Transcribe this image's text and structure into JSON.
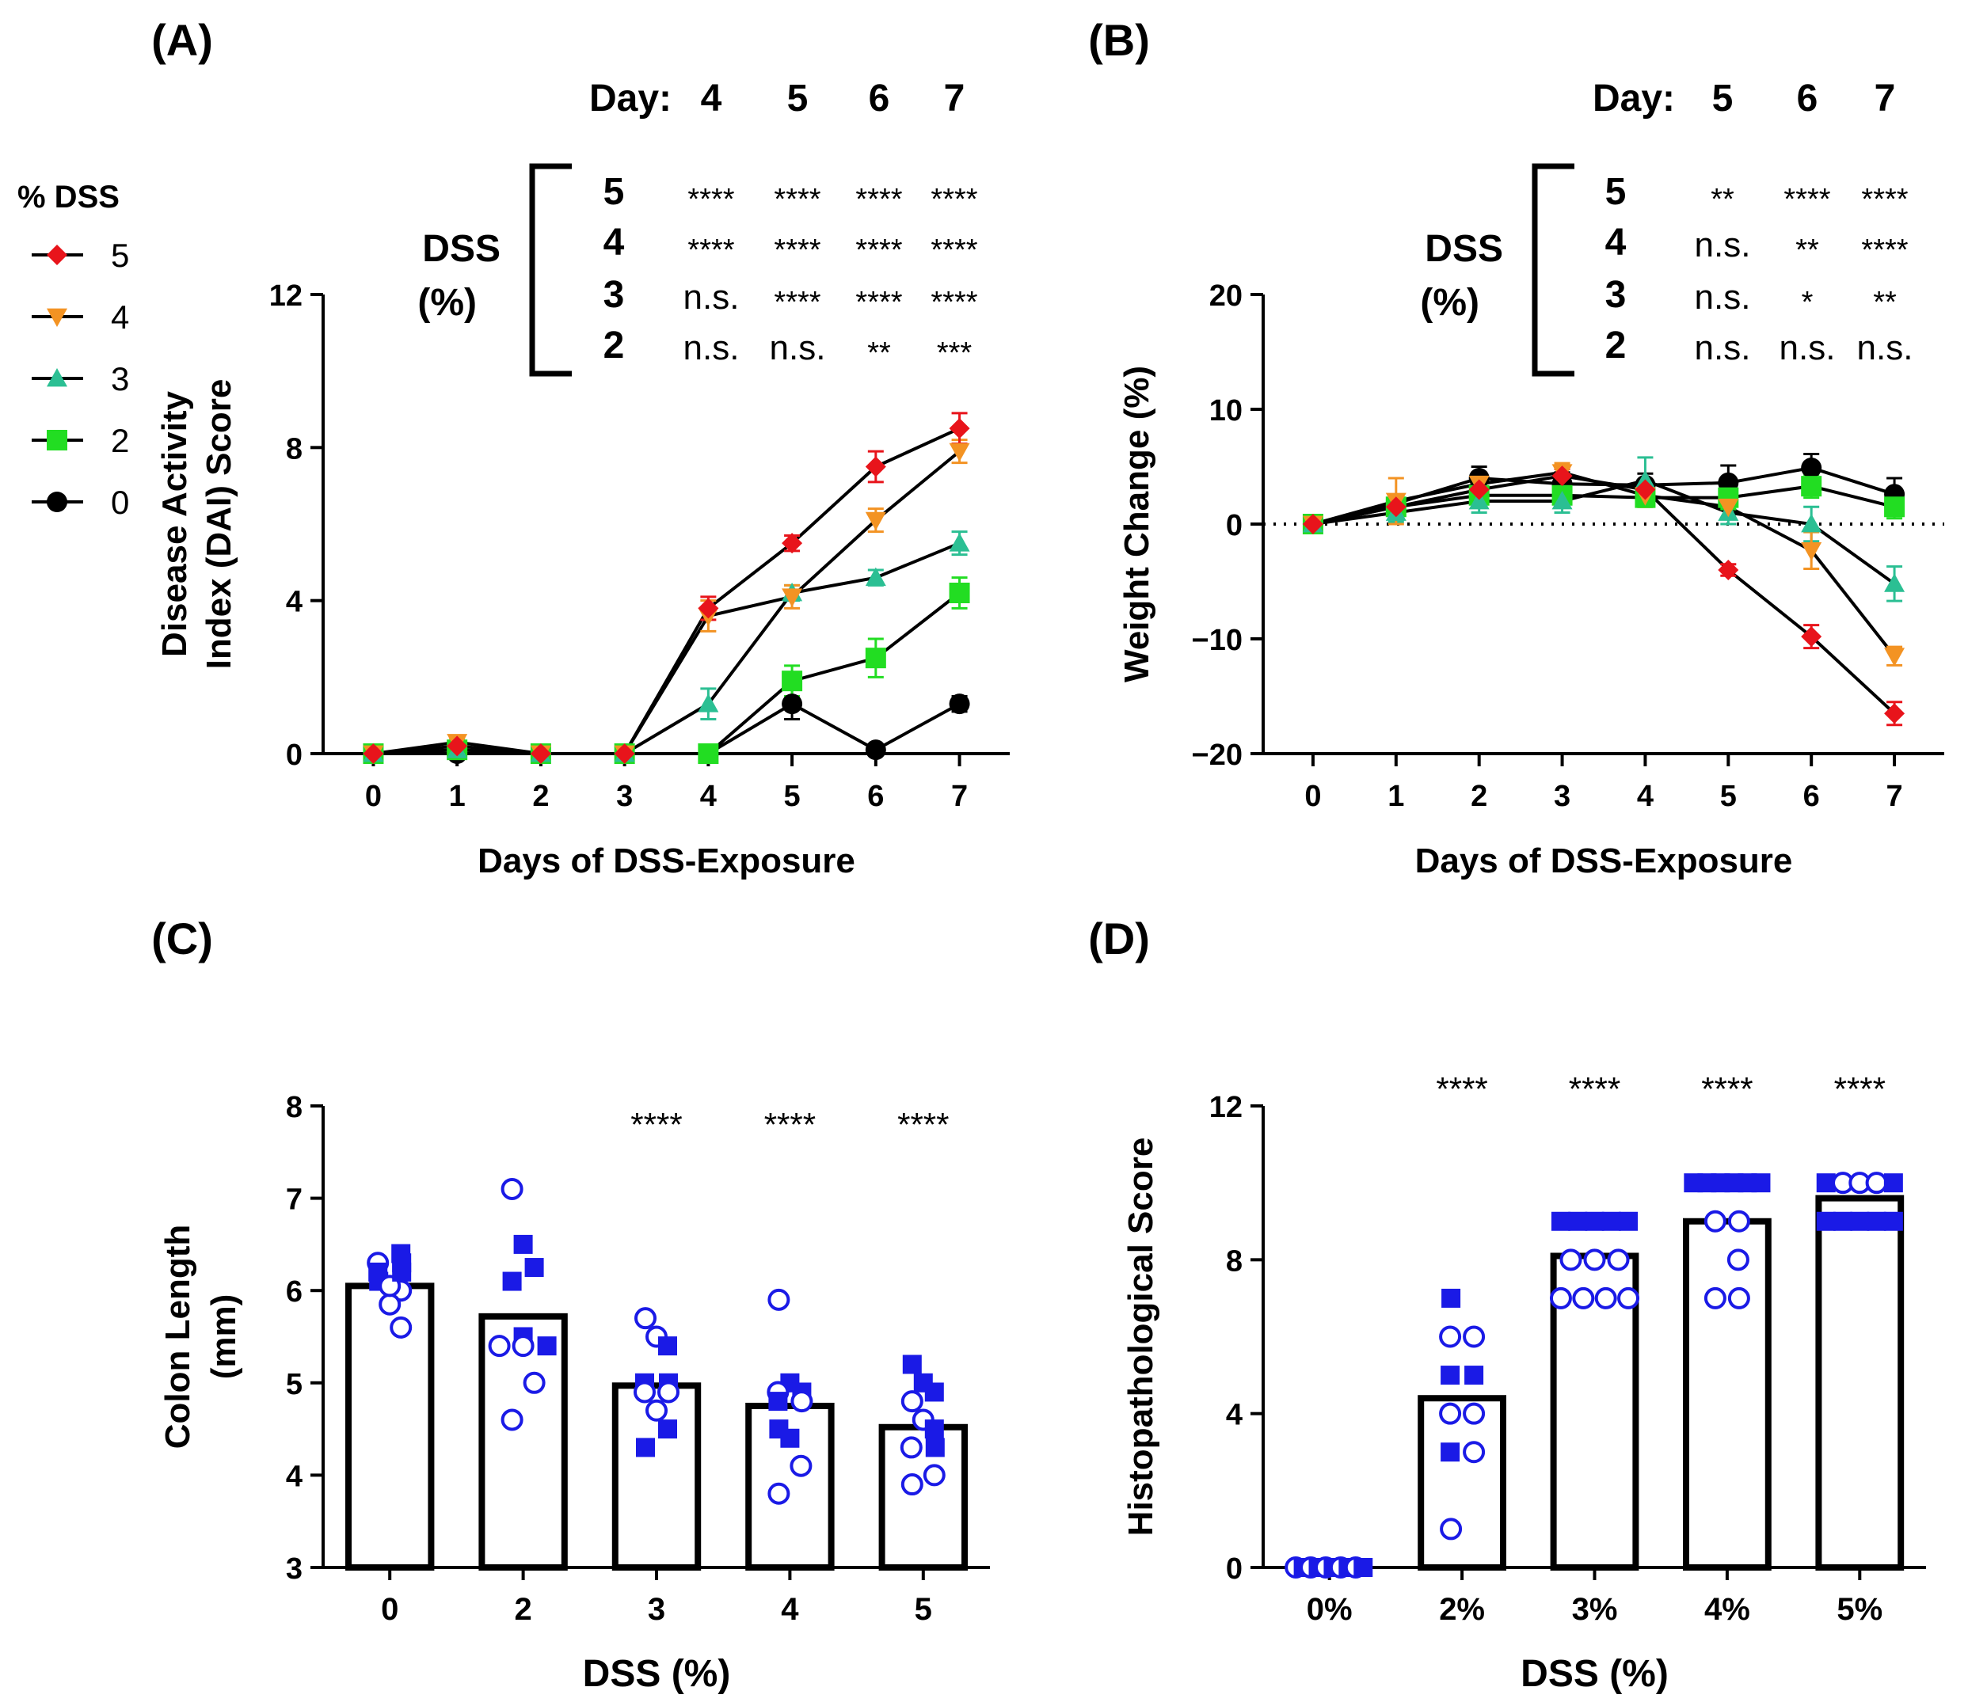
{
  "legend": {
    "title": "% DSS",
    "entries": [
      {
        "label": "5",
        "color": "#e8141b",
        "marker": "diamond"
      },
      {
        "label": "4",
        "color": "#f39323",
        "marker": "triangle-down"
      },
      {
        "label": "3",
        "color": "#2bbf93",
        "marker": "triangle-up"
      },
      {
        "label": "2",
        "color": "#22dd22",
        "marker": "square"
      },
      {
        "label": "0",
        "color": "#000000",
        "marker": "circle"
      }
    ]
  },
  "chart_data": [
    {
      "panel": "(A)",
      "type": "line",
      "xlabel": "Days of  DSS-Exposure",
      "ylabel": [
        "Disease Activity",
        "Index  (DAI) Score"
      ],
      "x": [
        0,
        1,
        2,
        3,
        4,
        5,
        6,
        7
      ],
      "xlim": [
        -0.6,
        7.6
      ],
      "ylim": [
        0,
        12
      ],
      "yticks": [
        "0",
        "4",
        "8",
        "12"
      ],
      "series": [
        {
          "name": "5",
          "color": "#e8141b",
          "marker": "diamond",
          "values": [
            0,
            0.2,
            0,
            0,
            3.8,
            5.5,
            7.5,
            8.5
          ],
          "err": [
            0,
            0.1,
            0,
            0,
            0.3,
            0.2,
            0.4,
            0.4
          ]
        },
        {
          "name": "4",
          "color": "#f39323",
          "marker": "triangle-down",
          "values": [
            0,
            0.3,
            0,
            0,
            3.6,
            4.1,
            6.1,
            7.9
          ],
          "err": [
            0,
            0.1,
            0,
            0,
            0.4,
            0.3,
            0.3,
            0.3
          ]
        },
        {
          "name": "3",
          "color": "#2bbf93",
          "marker": "triangle-up",
          "values": [
            0,
            0.1,
            0,
            0,
            1.3,
            4.2,
            4.6,
            5.5
          ],
          "err": [
            0,
            0,
            0,
            0,
            0.4,
            0.2,
            0.2,
            0.3
          ]
        },
        {
          "name": "2",
          "color": "#22dd22",
          "marker": "square",
          "values": [
            0,
            0.1,
            0,
            0,
            0,
            1.9,
            2.5,
            4.2
          ],
          "err": [
            0,
            0,
            0,
            0,
            0,
            0.4,
            0.5,
            0.4
          ]
        },
        {
          "name": "0",
          "color": "#000000",
          "marker": "circle",
          "values": [
            0,
            0,
            0,
            0,
            0,
            1.3,
            0.1,
            1.3
          ],
          "err": [
            0,
            0,
            0,
            0,
            0,
            0.4,
            0,
            0.2
          ]
        }
      ],
      "sig_table": {
        "title_label": "Day:",
        "days": [
          "4",
          "5",
          "6",
          "7"
        ],
        "group_label": [
          "DSS",
          "(%)"
        ],
        "rows": [
          {
            "dose": "5",
            "marks": [
              "****",
              "****",
              "****",
              "****"
            ]
          },
          {
            "dose": "4",
            "marks": [
              "****",
              "****",
              "****",
              "****"
            ]
          },
          {
            "dose": "3",
            "marks": [
              "n.s.",
              "****",
              "****",
              "****"
            ]
          },
          {
            "dose": "2",
            "marks": [
              "n.s.",
              "n.s.",
              "**",
              "***"
            ]
          }
        ]
      }
    },
    {
      "panel": "(B)",
      "type": "line",
      "xlabel": "Days of  DSS-Exposure",
      "ylabel": [
        "Weight Change (%)"
      ],
      "x": [
        0,
        1,
        2,
        3,
        4,
        5,
        6,
        7
      ],
      "xlim": [
        -0.6,
        7.6
      ],
      "ylim": [
        -20,
        20
      ],
      "yticks": [
        "−20",
        "−10",
        "0",
        "10",
        "20"
      ],
      "reference_line_y": 0,
      "series": [
        {
          "name": "5",
          "color": "#e8141b",
          "marker": "diamond",
          "values": [
            0,
            1.5,
            3.0,
            4.2,
            3.0,
            -4.0,
            -9.8,
            -16.5
          ],
          "err": [
            0,
            0.5,
            0.6,
            0.6,
            0.8,
            0.5,
            1.0,
            1.0
          ]
        },
        {
          "name": "4",
          "color": "#f39323",
          "marker": "triangle-down",
          "values": [
            0,
            2.0,
            3.5,
            4.5,
            2.5,
            1.5,
            -2.3,
            -11.5
          ],
          "err": [
            0,
            2.0,
            1.0,
            0.8,
            1.0,
            1.0,
            1.6,
            0.8
          ]
        },
        {
          "name": "3",
          "color": "#2bbf93",
          "marker": "triangle-up",
          "values": [
            0,
            1.0,
            2.0,
            2.0,
            3.8,
            1.0,
            0.0,
            -5.2
          ],
          "err": [
            0,
            0.8,
            1.0,
            1.0,
            2.0,
            1.0,
            1.5,
            1.5
          ]
        },
        {
          "name": "2",
          "color": "#22dd22",
          "marker": "square",
          "values": [
            0,
            1.5,
            2.5,
            2.5,
            2.3,
            2.3,
            3.3,
            1.5
          ],
          "err": [
            0,
            0.6,
            1.0,
            1.0,
            0.8,
            1.0,
            1.0,
            1.0
          ]
        },
        {
          "name": "0",
          "color": "#000000",
          "marker": "circle",
          "values": [
            0,
            1.8,
            4.0,
            3.5,
            3.4,
            3.6,
            4.9,
            2.6
          ],
          "err": [
            0,
            0.6,
            1.0,
            1.0,
            1.0,
            1.5,
            1.2,
            1.4
          ]
        }
      ],
      "sig_table": {
        "title_label": "Day:",
        "days": [
          "5",
          "6",
          "7"
        ],
        "group_label": [
          "DSS",
          "(%)"
        ],
        "rows": [
          {
            "dose": "5",
            "marks": [
              "**",
              "****",
              "****"
            ]
          },
          {
            "dose": "4",
            "marks": [
              "n.s.",
              "**",
              "****"
            ]
          },
          {
            "dose": "3",
            "marks": [
              "n.s.",
              "*",
              "**"
            ]
          },
          {
            "dose": "2",
            "marks": [
              "n.s.",
              "n.s.",
              "n.s."
            ]
          }
        ]
      }
    },
    {
      "panel": "(C)",
      "type": "bar",
      "xlabel": "DSS (%)",
      "ylabel": [
        "Colon  Length",
        "(mm)"
      ],
      "categories": [
        "0",
        "2",
        "3",
        "4",
        "5"
      ],
      "values": [
        6.05,
        5.72,
        4.97,
        4.75,
        4.52
      ],
      "ylim": [
        3,
        8
      ],
      "yticks": [
        "3",
        "4",
        "5",
        "6",
        "7",
        "8"
      ],
      "significance": [
        "",
        "",
        "****",
        "****",
        "****"
      ],
      "point_color": "#1a1ae6",
      "points": [
        [
          {
            "v": 6.3,
            "m": "o"
          },
          {
            "v": 6.2,
            "m": "s"
          },
          {
            "v": 6.0,
            "m": "o"
          },
          {
            "v": 6.1,
            "m": "s"
          },
          {
            "v": 5.85,
            "m": "o"
          },
          {
            "v": 5.6,
            "m": "o"
          },
          {
            "v": 6.3,
            "m": "s"
          },
          {
            "v": 6.05,
            "m": "o"
          },
          {
            "v": 6.4,
            "m": "s"
          },
          {
            "v": 6.2,
            "m": "s"
          }
        ],
        [
          {
            "v": 7.1,
            "m": "o"
          },
          {
            "v": 6.5,
            "m": "s"
          },
          {
            "v": 6.25,
            "m": "s"
          },
          {
            "v": 6.1,
            "m": "s"
          },
          {
            "v": 5.5,
            "m": "s"
          },
          {
            "v": 5.4,
            "m": "o"
          },
          {
            "v": 5.4,
            "m": "o"
          },
          {
            "v": 5.4,
            "m": "s"
          },
          {
            "v": 5.0,
            "m": "o"
          },
          {
            "v": 4.6,
            "m": "o"
          }
        ],
        [
          {
            "v": 5.7,
            "m": "o"
          },
          {
            "v": 5.5,
            "m": "o"
          },
          {
            "v": 5.4,
            "m": "s"
          },
          {
            "v": 5.0,
            "m": "s"
          },
          {
            "v": 4.9,
            "m": "o"
          },
          {
            "v": 5.0,
            "m": "s"
          },
          {
            "v": 4.9,
            "m": "o"
          },
          {
            "v": 4.7,
            "m": "o"
          },
          {
            "v": 4.5,
            "m": "s"
          },
          {
            "v": 4.3,
            "m": "s"
          }
        ],
        [
          {
            "v": 5.9,
            "m": "o"
          },
          {
            "v": 5.0,
            "m": "s"
          },
          {
            "v": 4.9,
            "m": "o"
          },
          {
            "v": 4.8,
            "m": "s"
          },
          {
            "v": 4.9,
            "m": "s"
          },
          {
            "v": 4.8,
            "m": "o"
          },
          {
            "v": 4.5,
            "m": "s"
          },
          {
            "v": 4.4,
            "m": "s"
          },
          {
            "v": 4.1,
            "m": "o"
          },
          {
            "v": 3.8,
            "m": "o"
          }
        ],
        [
          {
            "v": 5.2,
            "m": "s"
          },
          {
            "v": 5.0,
            "m": "s"
          },
          {
            "v": 4.9,
            "m": "s"
          },
          {
            "v": 4.8,
            "m": "o"
          },
          {
            "v": 4.6,
            "m": "o"
          },
          {
            "v": 4.5,
            "m": "s"
          },
          {
            "v": 4.3,
            "m": "o"
          },
          {
            "v": 4.3,
            "m": "s"
          },
          {
            "v": 4.0,
            "m": "o"
          },
          {
            "v": 3.9,
            "m": "o"
          }
        ]
      ]
    },
    {
      "panel": "(D)",
      "type": "bar",
      "xlabel": "DSS (%)",
      "ylabel": [
        "Histopathological Score"
      ],
      "categories": [
        "0%",
        "2%",
        "3%",
        "4%",
        "5%"
      ],
      "values": [
        0,
        4.4,
        8.1,
        9.0,
        9.6
      ],
      "ylim": [
        0,
        12
      ],
      "yticks": [
        "0",
        "4",
        "8",
        "12"
      ],
      "significance": [
        "",
        "****",
        "****",
        "****",
        "****"
      ],
      "point_color": "#1a1ae6",
      "points": [
        [
          {
            "v": 0,
            "m": "o"
          },
          {
            "v": 0,
            "m": "s"
          },
          {
            "v": 0,
            "m": "o"
          },
          {
            "v": 0,
            "m": "s"
          },
          {
            "v": 0,
            "m": "o"
          },
          {
            "v": 0,
            "m": "s"
          },
          {
            "v": 0,
            "m": "o"
          },
          {
            "v": 0,
            "m": "s"
          },
          {
            "v": 0,
            "m": "o"
          },
          {
            "v": 0,
            "m": "s"
          }
        ],
        [
          {
            "v": 7,
            "m": "s"
          },
          {
            "v": 6,
            "m": "o"
          },
          {
            "v": 6,
            "m": "o"
          },
          {
            "v": 5,
            "m": "s"
          },
          {
            "v": 5,
            "m": "s"
          },
          {
            "v": 4,
            "m": "o"
          },
          {
            "v": 4,
            "m": "o"
          },
          {
            "v": 3,
            "m": "s"
          },
          {
            "v": 3,
            "m": "o"
          },
          {
            "v": 1,
            "m": "o"
          }
        ],
        [
          {
            "v": 9,
            "m": "s"
          },
          {
            "v": 9,
            "m": "s"
          },
          {
            "v": 9,
            "m": "s"
          },
          {
            "v": 9,
            "m": "s"
          },
          {
            "v": 9,
            "m": "s"
          },
          {
            "v": 8,
            "m": "o"
          },
          {
            "v": 8,
            "m": "o"
          },
          {
            "v": 8,
            "m": "o"
          },
          {
            "v": 7,
            "m": "o"
          },
          {
            "v": 7,
            "m": "o"
          },
          {
            "v": 7,
            "m": "o"
          },
          {
            "v": 7,
            "m": "o"
          }
        ],
        [
          {
            "v": 10,
            "m": "s"
          },
          {
            "v": 10,
            "m": "s"
          },
          {
            "v": 10,
            "m": "s"
          },
          {
            "v": 10,
            "m": "s"
          },
          {
            "v": 10,
            "m": "s"
          },
          {
            "v": 10,
            "m": "s"
          },
          {
            "v": 9,
            "m": "o"
          },
          {
            "v": 9,
            "m": "o"
          },
          {
            "v": 8,
            "m": "o"
          },
          {
            "v": 7,
            "m": "o"
          },
          {
            "v": 7,
            "m": "o"
          }
        ],
        [
          {
            "v": 10,
            "m": "s"
          },
          {
            "v": 10,
            "m": "o"
          },
          {
            "v": 10,
            "m": "o"
          },
          {
            "v": 10,
            "m": "o"
          },
          {
            "v": 10,
            "m": "s"
          },
          {
            "v": 9,
            "m": "s"
          },
          {
            "v": 9,
            "m": "s"
          },
          {
            "v": 9,
            "m": "s"
          },
          {
            "v": 9,
            "m": "s"
          },
          {
            "v": 9,
            "m": "s"
          }
        ]
      ]
    }
  ]
}
